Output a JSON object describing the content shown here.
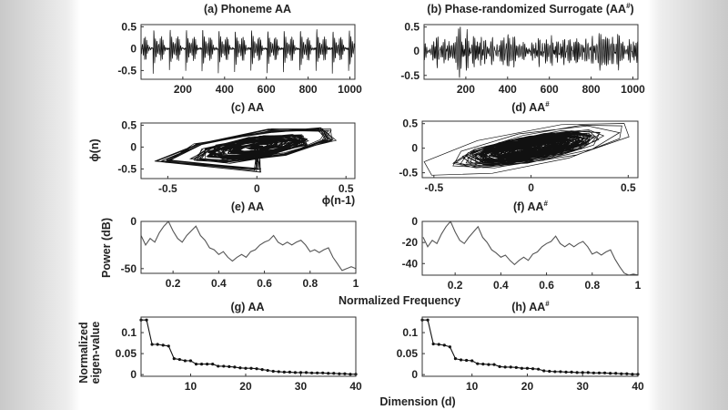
{
  "colors": {
    "background": "#ffffff",
    "side_margin": "#c9c9c9",
    "waveform": "#111111",
    "spectrum": "#555555",
    "eigen": "#111111"
  },
  "labels": {
    "phi_n": "ϕ(n)",
    "phi_n_minus_1": "ϕ(n-1)",
    "power_db": "Power (dB)",
    "normalized_frequency": "Normalized Frequency",
    "normalized": "Normalized",
    "eigen_value": "eigen-value",
    "dimension": "Dimension (d)"
  },
  "chart_data": [
    {
      "id": "a",
      "type": "line",
      "title": "(a) Phoneme AA",
      "title_sup": "",
      "title_after": "",
      "xlim": [
        0,
        1024
      ],
      "ylim": [
        -0.7,
        0.55
      ],
      "xticks": [
        200,
        400,
        600,
        800,
        1000
      ],
      "yticks": [
        -0.5,
        0,
        0.5
      ],
      "ytick_labels": [
        "-0.5",
        "0",
        "0.5"
      ],
      "xtick_labels": [
        "200",
        "400",
        "600",
        "800",
        "1000"
      ],
      "signal": {
        "samples": 1024,
        "kind": "quasi-periodic speech",
        "pitch_period_samples": 78,
        "peak_amplitude": 0.6
      }
    },
    {
      "id": "b",
      "type": "line",
      "title": "(b) Phase-randomized Surrogate (AA",
      "title_sup": "#",
      "title_after": ")",
      "xlim": [
        0,
        1024
      ],
      "ylim": [
        -0.58,
        0.55
      ],
      "xticks": [
        200,
        400,
        600,
        800,
        1000
      ],
      "yticks": [
        -0.5,
        0,
        0.5
      ],
      "ytick_labels": [
        "-0.5",
        "0",
        "0.5"
      ],
      "xtick_labels": [
        "200",
        "400",
        "600",
        "800",
        "1000"
      ],
      "signal": {
        "samples": 1024,
        "kind": "phase-randomized surrogate",
        "peak_amplitude": 0.55
      }
    },
    {
      "id": "c",
      "type": "scatter-line",
      "title": "(c) AA",
      "title_sup": "",
      "title_after": "",
      "xlim": [
        -0.65,
        0.55
      ],
      "ylim": [
        -0.72,
        0.55
      ],
      "xticks": [
        -0.5,
        0,
        0.5
      ],
      "yticks": [
        -0.5,
        0,
        0.5
      ],
      "xtick_labels": [
        "-0.5",
        "0",
        "0.5"
      ],
      "ytick_labels": [
        "-0.5",
        "0",
        "0.5"
      ],
      "xlabel": "ϕ(n-1)",
      "ylabel": "ϕ(n)",
      "source": "a"
    },
    {
      "id": "d",
      "type": "scatter-line",
      "title": "(d) AA",
      "title_sup": "#",
      "title_after": "",
      "xlim": [
        -0.56,
        0.55
      ],
      "ylim": [
        -0.6,
        0.55
      ],
      "xticks": [
        -0.5,
        0,
        0.5
      ],
      "yticks": [
        -0.5,
        0,
        0.5
      ],
      "xtick_labels": [
        "-0.5",
        "0",
        "0.5"
      ],
      "ytick_labels": [
        "-0.5",
        "0",
        "0.5"
      ],
      "xlabel": "ϕ(n-1)",
      "ylabel": "ϕ(n)",
      "source": "b"
    },
    {
      "id": "e",
      "type": "line",
      "title": "(e) AA",
      "title_sup": "",
      "title_after": "",
      "xlim": [
        0.06,
        1
      ],
      "ylim": [
        -55,
        0
      ],
      "xticks": [
        0.2,
        0.4,
        0.6,
        0.8,
        1
      ],
      "yticks": [
        -50,
        0
      ],
      "xtick_labels": [
        "0.2",
        "0.4",
        "0.6",
        "0.8",
        "1"
      ],
      "ytick_labels": [
        "-50",
        "0"
      ],
      "xlabel": "Normalized Frequency",
      "ylabel": "Power (dB)",
      "x": [
        0.06,
        0.08,
        0.1,
        0.12,
        0.14,
        0.16,
        0.18,
        0.2,
        0.22,
        0.24,
        0.26,
        0.28,
        0.3,
        0.32,
        0.34,
        0.36,
        0.38,
        0.4,
        0.42,
        0.44,
        0.46,
        0.48,
        0.5,
        0.52,
        0.54,
        0.56,
        0.58,
        0.6,
        0.62,
        0.64,
        0.66,
        0.68,
        0.7,
        0.72,
        0.74,
        0.76,
        0.78,
        0.8,
        0.82,
        0.84,
        0.86,
        0.88,
        0.9,
        0.92,
        0.94,
        0.96,
        0.98,
        1.0
      ],
      "y": [
        -15,
        -25,
        -18,
        -22,
        -12,
        -5,
        0,
        -10,
        -18,
        -22,
        -15,
        -10,
        -5,
        -15,
        -20,
        -28,
        -30,
        -35,
        -32,
        -38,
        -42,
        -38,
        -35,
        -38,
        -32,
        -30,
        -25,
        -22,
        -20,
        -15,
        -22,
        -25,
        -22,
        -25,
        -22,
        -20,
        -25,
        -32,
        -30,
        -33,
        -30,
        -28,
        -38,
        -45,
        -52,
        -50,
        -48,
        -50
      ]
    },
    {
      "id": "f",
      "type": "line",
      "title": "(f) AA",
      "title_sup": "#",
      "title_after": "",
      "xlim": [
        0.056,
        1
      ],
      "ylim": [
        -51,
        0
      ],
      "xticks": [
        0.2,
        0.4,
        0.6,
        0.8,
        1
      ],
      "yticks": [
        -40,
        -20,
        0
      ],
      "xtick_labels": [
        "0.2",
        "0.4",
        "0.6",
        "0.8",
        "1"
      ],
      "ytick_labels": [
        "-40",
        "-20",
        "0"
      ],
      "xlabel": "Normalized Frequency",
      "ylabel": "Power (dB)",
      "x": [
        0.06,
        0.08,
        0.1,
        0.12,
        0.14,
        0.16,
        0.18,
        0.2,
        0.22,
        0.24,
        0.26,
        0.28,
        0.3,
        0.32,
        0.34,
        0.36,
        0.38,
        0.4,
        0.42,
        0.44,
        0.46,
        0.48,
        0.5,
        0.52,
        0.54,
        0.56,
        0.58,
        0.6,
        0.62,
        0.64,
        0.66,
        0.68,
        0.7,
        0.72,
        0.74,
        0.76,
        0.78,
        0.8,
        0.82,
        0.84,
        0.86,
        0.88,
        0.9,
        0.92,
        0.94,
        0.96,
        0.98,
        1.0
      ],
      "y": [
        -15,
        -24,
        -18,
        -21,
        -12,
        -5,
        0,
        -10,
        -18,
        -21,
        -15,
        -10,
        -5,
        -15,
        -20,
        -27,
        -30,
        -34,
        -32,
        -37,
        -41,
        -37,
        -34,
        -37,
        -31,
        -29,
        -24,
        -21,
        -19,
        -14,
        -21,
        -24,
        -21,
        -24,
        -21,
        -19,
        -24,
        -31,
        -29,
        -32,
        -29,
        -27,
        -36,
        -43,
        -49,
        -51,
        -50,
        -51
      ]
    },
    {
      "id": "g",
      "type": "line",
      "title": "(g) AA",
      "title_sup": "",
      "title_after": "",
      "xlim": [
        1,
        40
      ],
      "ylim": [
        -0.004,
        0.137
      ],
      "xticks": [
        10,
        20,
        30,
        40
      ],
      "yticks": [
        0,
        0.05,
        0.1
      ],
      "xtick_labels": [
        "10",
        "20",
        "30",
        "40"
      ],
      "ytick_labels": [
        "0",
        "0.05",
        "0.1"
      ],
      "xlabel": "Dimension (d)",
      "ylabel": "Normalized eigen-value",
      "markers": true,
      "x": [
        1,
        2,
        3,
        4,
        5,
        6,
        7,
        8,
        9,
        10,
        11,
        12,
        13,
        14,
        15,
        16,
        17,
        18,
        19,
        20,
        21,
        22,
        23,
        24,
        25,
        26,
        27,
        28,
        29,
        30,
        31,
        32,
        33,
        34,
        35,
        36,
        37,
        38,
        39,
        40
      ],
      "y": [
        0.13,
        0.13,
        0.072,
        0.072,
        0.07,
        0.068,
        0.038,
        0.036,
        0.033,
        0.033,
        0.025,
        0.025,
        0.025,
        0.025,
        0.02,
        0.02,
        0.019,
        0.018,
        0.016,
        0.015,
        0.015,
        0.014,
        0.012,
        0.01,
        0.008,
        0.007,
        0.006,
        0.006,
        0.005,
        0.005,
        0.005,
        0.004,
        0.004,
        0.004,
        0.003,
        0.003,
        0.002,
        0.002,
        0.001,
        0.001
      ]
    },
    {
      "id": "h",
      "type": "line",
      "title": "(h) AA",
      "title_sup": "#",
      "title_after": "",
      "xlim": [
        1,
        40
      ],
      "ylim": [
        -0.004,
        0.137
      ],
      "xticks": [
        10,
        20,
        30,
        40
      ],
      "yticks": [
        0,
        0.05,
        0.1
      ],
      "xtick_labels": [
        "10",
        "20",
        "30",
        "40"
      ],
      "ytick_labels": [
        "0",
        "0.05",
        "0.1"
      ],
      "xlabel": "Dimension (d)",
      "ylabel": "Normalized eigen-value",
      "markers": true,
      "x": [
        1,
        2,
        3,
        4,
        5,
        6,
        7,
        8,
        9,
        10,
        11,
        12,
        13,
        14,
        15,
        16,
        17,
        18,
        19,
        20,
        21,
        22,
        23,
        24,
        25,
        26,
        27,
        28,
        29,
        30,
        31,
        32,
        33,
        34,
        35,
        36,
        37,
        38,
        39,
        40
      ],
      "y": [
        0.13,
        0.13,
        0.073,
        0.072,
        0.07,
        0.066,
        0.038,
        0.035,
        0.034,
        0.033,
        0.026,
        0.025,
        0.024,
        0.024,
        0.019,
        0.018,
        0.018,
        0.017,
        0.015,
        0.015,
        0.014,
        0.013,
        0.009,
        0.008,
        0.007,
        0.007,
        0.006,
        0.006,
        0.005,
        0.005,
        0.005,
        0.004,
        0.004,
        0.004,
        0.003,
        0.003,
        0.002,
        0.002,
        0.001,
        0.001
      ]
    }
  ]
}
